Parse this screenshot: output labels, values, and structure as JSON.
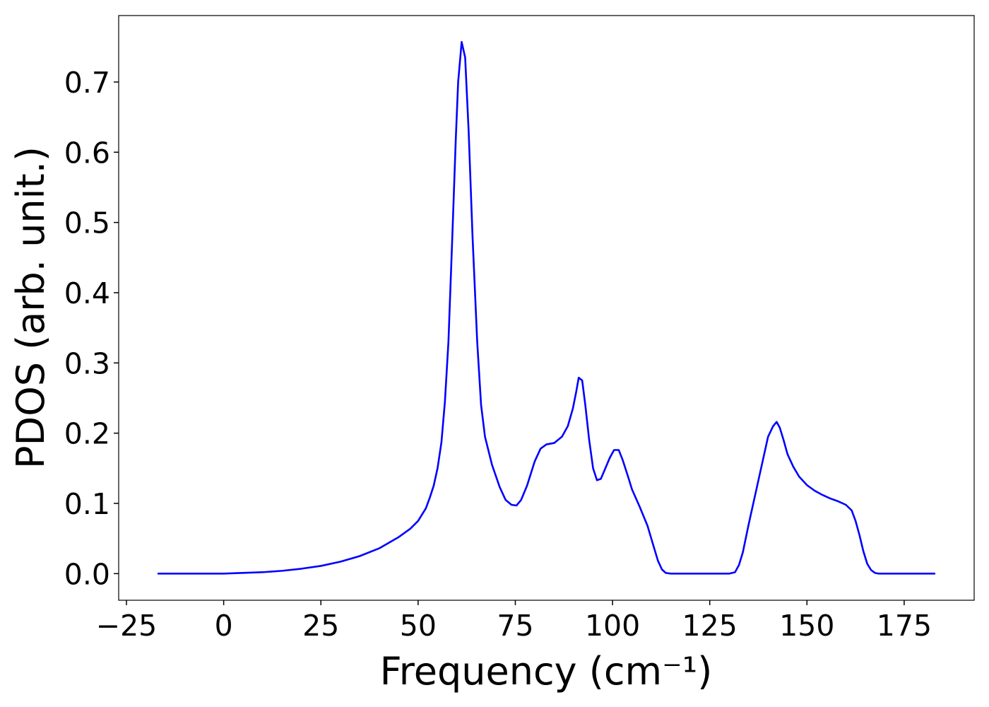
{
  "chart_data": {
    "type": "line",
    "x_label": "Frequency (cm⁻¹)",
    "y_label": "PDOS (arb. unit.)",
    "x": [
      -17,
      0,
      5,
      10,
      15,
      20,
      25,
      30,
      35,
      40,
      45,
      48,
      50,
      52,
      53,
      54,
      55,
      56,
      56.9,
      57.8,
      58.8,
      59.7,
      60.3,
      61.2,
      62.1,
      63,
      64,
      65.2,
      66.2,
      67.2,
      69,
      71,
      72.5,
      74,
      75.3,
      76.5,
      78,
      80,
      81.5,
      83,
      85,
      87,
      88.5,
      89.8,
      90.7,
      91.3,
      92.2,
      93,
      94,
      95,
      96,
      97,
      98,
      99.3,
      100.4,
      101.6,
      102.6,
      104,
      105,
      107,
      109,
      110.5,
      111.7,
      112.7,
      113.7,
      115,
      130,
      131.5,
      132.5,
      133.5,
      135,
      137,
      139,
      140,
      141.3,
      142.2,
      143,
      144,
      145,
      146.5,
      148,
      150,
      152,
      154,
      156,
      158,
      160,
      161.5,
      162.5,
      163.5,
      164.5,
      165.5,
      166.5,
      167.5,
      168.5,
      183
    ],
    "series": [
      {
        "name": "PDOS",
        "color": "#0000ff",
        "values": [
          0,
          0,
          0.001,
          0.002,
          0.004,
          0.007,
          0.011,
          0.017,
          0.025,
          0.036,
          0.052,
          0.064,
          0.075,
          0.093,
          0.108,
          0.125,
          0.15,
          0.187,
          0.245,
          0.33,
          0.48,
          0.62,
          0.7,
          0.757,
          0.735,
          0.63,
          0.48,
          0.33,
          0.24,
          0.195,
          0.155,
          0.123,
          0.105,
          0.098,
          0.097,
          0.105,
          0.125,
          0.16,
          0.178,
          0.184,
          0.186,
          0.195,
          0.21,
          0.235,
          0.26,
          0.279,
          0.275,
          0.24,
          0.19,
          0.15,
          0.133,
          0.135,
          0.148,
          0.165,
          0.176,
          0.176,
          0.162,
          0.138,
          0.12,
          0.095,
          0.068,
          0.04,
          0.018,
          0.006,
          0.001,
          0,
          0,
          0.002,
          0.012,
          0.03,
          0.07,
          0.12,
          0.17,
          0.195,
          0.21,
          0.216,
          0.208,
          0.19,
          0.17,
          0.152,
          0.138,
          0.126,
          0.118,
          0.112,
          0.107,
          0.103,
          0.098,
          0.09,
          0.075,
          0.055,
          0.032,
          0.014,
          0.005,
          0.001,
          0,
          0
        ]
      }
    ],
    "xlim": [
      -27,
      193
    ],
    "ylim": [
      -0.0379,
      0.7946
    ],
    "xticks": [
      {
        "value": -25,
        "label": "−25"
      },
      0,
      25,
      50,
      75,
      100,
      125,
      150,
      175
    ],
    "yticks": [
      {
        "value": 0,
        "label": "0.0"
      },
      0.1,
      0.2,
      0.3,
      0.4,
      0.5,
      0.6,
      0.7
    ],
    "grid": false
  }
}
